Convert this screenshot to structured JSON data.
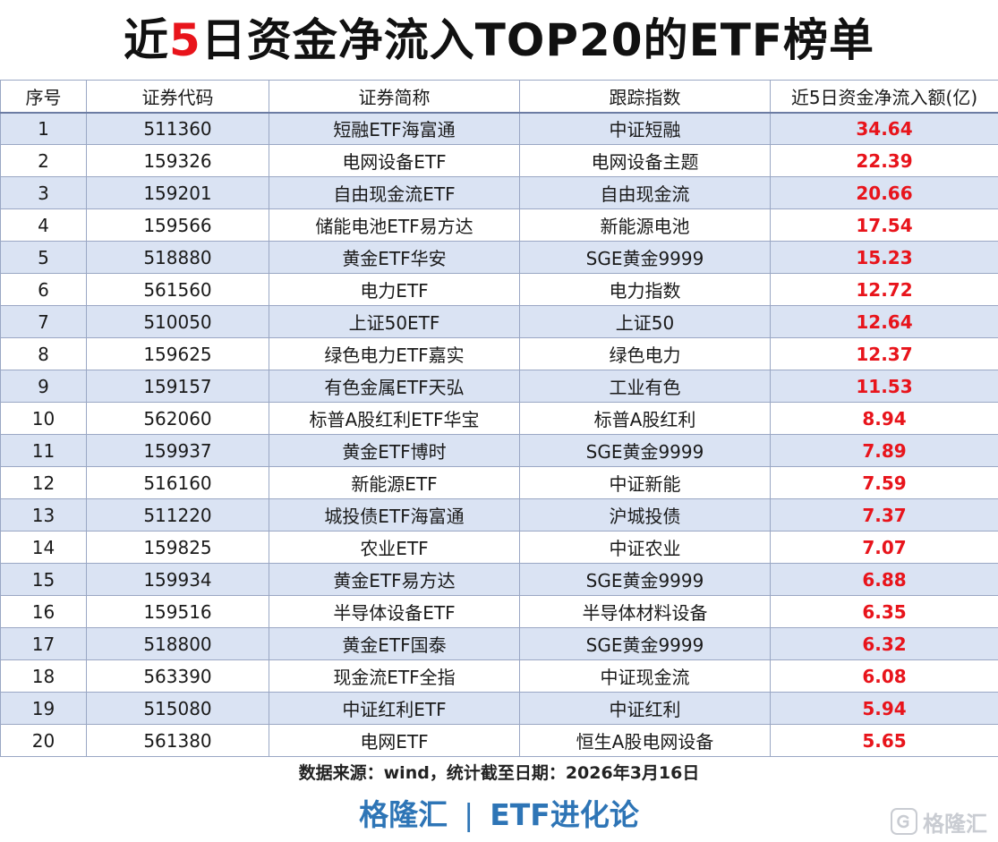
{
  "title": {
    "prefix": "近",
    "accent": "5",
    "suffix": "日资金净流入TOP20的ETF榜单"
  },
  "table": {
    "headers": [
      "序号",
      "证券代码",
      "证券简称",
      "跟踪指数",
      "近5日资金净流入额(亿)"
    ],
    "rows": [
      [
        "1",
        "511360",
        "短融ETF海富通",
        "中证短融",
        "34.64"
      ],
      [
        "2",
        "159326",
        "电网设备ETF",
        "电网设备主题",
        "22.39"
      ],
      [
        "3",
        "159201",
        "自由现金流ETF",
        "自由现金流",
        "20.66"
      ],
      [
        "4",
        "159566",
        "储能电池ETF易方达",
        "新能源电池",
        "17.54"
      ],
      [
        "5",
        "518880",
        "黄金ETF华安",
        "SGE黄金9999",
        "15.23"
      ],
      [
        "6",
        "561560",
        "电力ETF",
        "电力指数",
        "12.72"
      ],
      [
        "7",
        "510050",
        "上证50ETF",
        "上证50",
        "12.64"
      ],
      [
        "8",
        "159625",
        "绿色电力ETF嘉实",
        "绿色电力",
        "12.37"
      ],
      [
        "9",
        "159157",
        "有色金属ETF天弘",
        "工业有色",
        "11.53"
      ],
      [
        "10",
        "562060",
        "标普A股红利ETF华宝",
        "标普A股红利",
        "8.94"
      ],
      [
        "11",
        "159937",
        "黄金ETF博时",
        "SGE黄金9999",
        "7.89"
      ],
      [
        "12",
        "516160",
        "新能源ETF",
        "中证新能",
        "7.59"
      ],
      [
        "13",
        "511220",
        "城投债ETF海富通",
        "沪城投债",
        "7.37"
      ],
      [
        "14",
        "159825",
        "农业ETF",
        "中证农业",
        "7.07"
      ],
      [
        "15",
        "159934",
        "黄金ETF易方达",
        "SGE黄金9999",
        "6.88"
      ],
      [
        "16",
        "159516",
        "半导体设备ETF",
        "半导体材料设备",
        "6.35"
      ],
      [
        "17",
        "518800",
        "黄金ETF国泰",
        "SGE黄金9999",
        "6.32"
      ],
      [
        "18",
        "563390",
        "现金流ETF全指",
        "中证现金流",
        "6.08"
      ],
      [
        "19",
        "515080",
        "中证红利ETF",
        "中证红利",
        "5.94"
      ],
      [
        "20",
        "561380",
        "电网ETF",
        "恒生A股电网设备",
        "5.65"
      ]
    ]
  },
  "source_note": "数据来源：wind，统计截至日期：2026年3月16日",
  "brand": {
    "left": "格隆汇",
    "separator": "|",
    "right": "ETF进化论"
  },
  "watermark": {
    "text": "格隆汇",
    "icon": "gelonghui-logo-icon"
  },
  "colors": {
    "accent_red": "#e8141b",
    "brand_blue": "#2e75b6",
    "row_band": "#dae3f3"
  }
}
